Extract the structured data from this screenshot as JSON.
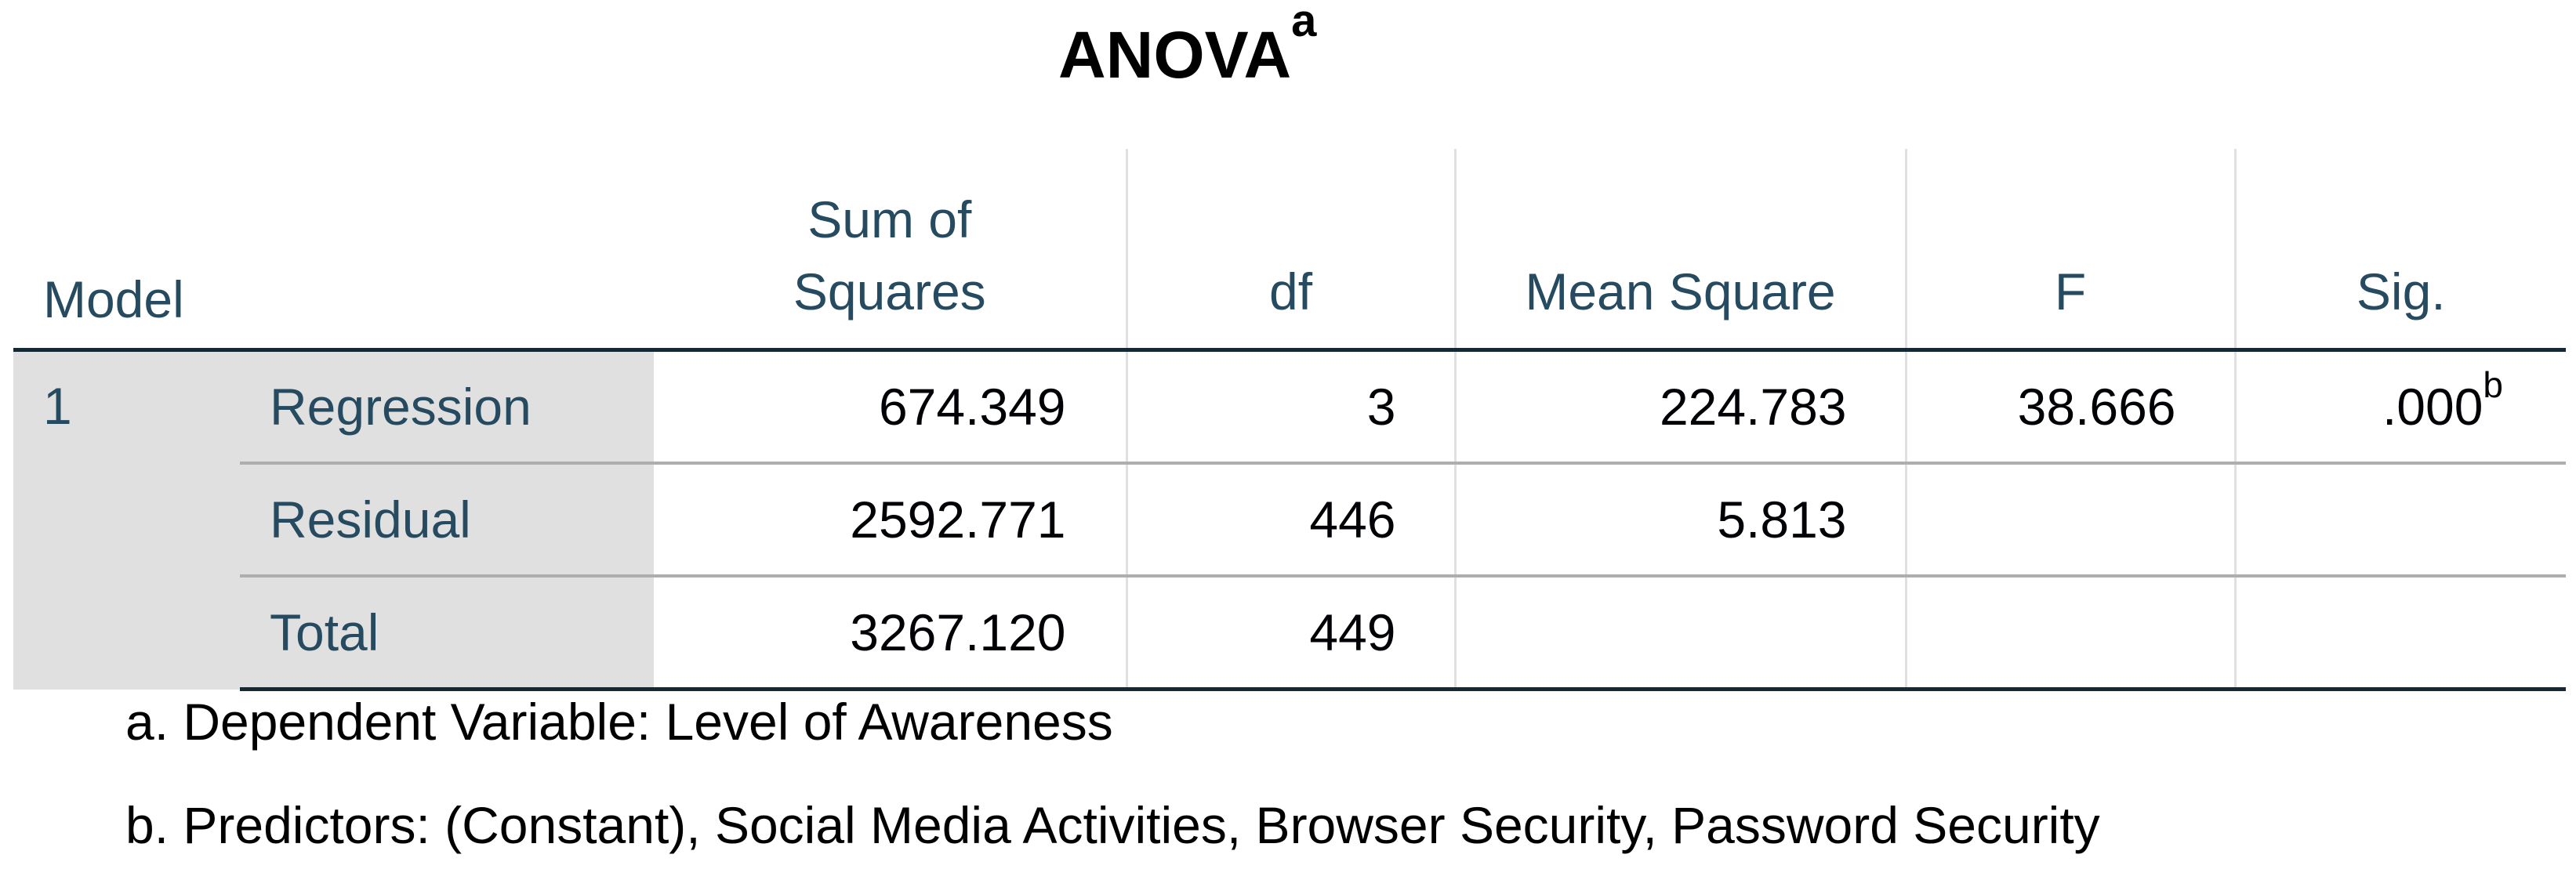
{
  "title": {
    "text": "ANOVA",
    "superscript": "a"
  },
  "headers": {
    "model": "Model",
    "sum_of_squares_line1": "Sum of",
    "sum_of_squares_line2": "Squares",
    "df": "df",
    "mean_square": "Mean Square",
    "f": "F",
    "sig": "Sig."
  },
  "model_number": "1",
  "rows": [
    {
      "label": "Regression",
      "sum_of_squares": "674.349",
      "df": "3",
      "mean_square": "224.783",
      "f": "38.666",
      "sig": ".000",
      "sig_superscript": "b"
    },
    {
      "label": "Residual",
      "sum_of_squares": "2592.771",
      "df": "446",
      "mean_square": "5.813",
      "f": "",
      "sig": ""
    },
    {
      "label": "Total",
      "sum_of_squares": "3267.120",
      "df": "449",
      "mean_square": "",
      "f": "",
      "sig": ""
    }
  ],
  "footnotes": {
    "a": "a. Dependent Variable: Level of Awareness",
    "b": "b. Predictors: (Constant), Social Media Activities, Browser Security, Password Security"
  },
  "colors": {
    "header_text": "#264a60",
    "label_background": "#e0e0e0",
    "border_dark": "#152935",
    "row_separator": "#aeaeae"
  }
}
